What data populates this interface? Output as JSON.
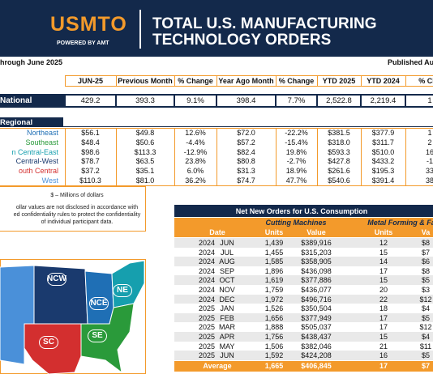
{
  "header": {
    "logo": "USMTO",
    "logo_sub": "POWERED BY AMT",
    "title_lines": [
      "TOTAL U.S. MANUFACTURING",
      "TECHNOLOGY ORDERS"
    ]
  },
  "period": "hrough June 2025",
  "published": "Published Aug",
  "summary": {
    "columns": [
      "JUN-25",
      "Previous Month",
      "% Change",
      "Year Ago Month",
      "% Change",
      "YTD 2025",
      "YTD 2024",
      "% Cha"
    ],
    "national": {
      "label": "National",
      "values": [
        "429.2",
        "393.3",
        "9.1%",
        "398.4",
        "7.7%",
        "2,522.8",
        "2,219.4",
        "1"
      ]
    },
    "regional_label": "Regional",
    "regions": [
      {
        "label": "Northeast",
        "color": "#1f6fb5",
        "values": [
          "$56.1",
          "$49.8",
          "12.6%",
          "$72.0",
          "-22.2%",
          "$381.5",
          "$377.9",
          "1"
        ]
      },
      {
        "label": "Southeast",
        "color": "#2a9a3a",
        "values": [
          "$48.4",
          "$50.6",
          "-4.4%",
          "$57.2",
          "-15.4%",
          "$318.0",
          "$311.7",
          "2"
        ]
      },
      {
        "label": "n Central-East",
        "color": "#169fae",
        "values": [
          "$98.6",
          "$113.3",
          "-12.9%",
          "$82.4",
          "19.8%",
          "$593.3",
          "$510.0",
          "16"
        ]
      },
      {
        "label": "Central-West",
        "color": "#1a3a6e",
        "values": [
          "$78.7",
          "$63.5",
          "23.8%",
          "$80.8",
          "-2.7%",
          "$427.8",
          "$433.2",
          "-1"
        ]
      },
      {
        "label": "outh Central",
        "color": "#d32f2f",
        "values": [
          "$37.2",
          "$35.1",
          "6.0%",
          "$31.3",
          "18.9%",
          "$261.6",
          "$195.3",
          "33"
        ]
      },
      {
        "label": "West",
        "color": "#4a90d9",
        "values": [
          "$110.3",
          "$81.0",
          "36.2%",
          "$74.7",
          "47.7%",
          "$540.6",
          "$391.4",
          "38"
        ]
      }
    ]
  },
  "notes": [
    "$ – Millions of dollars",
    "ollar values are not disclosed in accordance with",
    "ed confidentiality rules to protect the confidentiality",
    "of individual participant data."
  ],
  "orders": {
    "title": "Net New Orders for U.S. Consumption",
    "groups": [
      "Cutting Machines",
      "Metal Forming & Fa"
    ],
    "columns": [
      "Date",
      "Units",
      "Value",
      "Units",
      "Va"
    ],
    "rows": [
      [
        "2024",
        "JUN",
        "1,439",
        "$389,916",
        "12",
        "$8"
      ],
      [
        "2024",
        "JUL",
        "1,455",
        "$315,203",
        "15",
        "$7"
      ],
      [
        "2024",
        "AUG",
        "1,585",
        "$358,905",
        "14",
        "$6"
      ],
      [
        "2024",
        "SEP",
        "1,896",
        "$436,098",
        "17",
        "$8"
      ],
      [
        "2024",
        "OCT",
        "1,619",
        "$377,886",
        "15",
        "$5"
      ],
      [
        "2024",
        "NOV",
        "1,759",
        "$436,077",
        "20",
        "$3"
      ],
      [
        "2024",
        "DEC",
        "1,972",
        "$496,716",
        "22",
        "$12"
      ],
      [
        "2025",
        "JAN",
        "1,526",
        "$350,504",
        "18",
        "$4"
      ],
      [
        "2025",
        "FEB",
        "1,656",
        "$377,949",
        "17",
        "$5"
      ],
      [
        "2025",
        "MAR",
        "1,888",
        "$505,037",
        "17",
        "$12"
      ],
      [
        "2025",
        "APR",
        "1,756",
        "$438,437",
        "15",
        "$4"
      ],
      [
        "2025",
        "MAY",
        "1,506",
        "$382,046",
        "21",
        "$11"
      ],
      [
        "2025",
        "JUN",
        "1,592",
        "$424,208",
        "16",
        "$5"
      ]
    ],
    "average": [
      "Average",
      "1,665",
      "$406,845",
      "17",
      "$7"
    ]
  },
  "map": {
    "labels": [
      "NCW",
      "NCE",
      "NE",
      "SE",
      "SC"
    ]
  }
}
